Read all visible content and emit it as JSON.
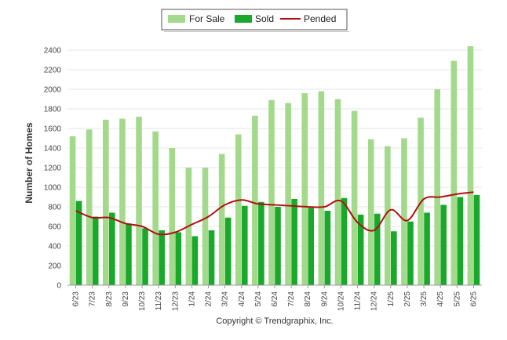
{
  "chart_data": {
    "type": "bar",
    "categories": [
      "6/23",
      "7/23",
      "8/23",
      "9/23",
      "10/23",
      "11/23",
      "12/23",
      "1/24",
      "2/24",
      "3/24",
      "4/24",
      "5/24",
      "6/24",
      "7/24",
      "8/24",
      "9/24",
      "10/24",
      "11/24",
      "12/24",
      "1/25",
      "2/25",
      "3/25",
      "4/25",
      "5/25",
      "6/25"
    ],
    "series": [
      {
        "name": "For Sale",
        "type": "bar",
        "color": "#a3d98a",
        "values": [
          1520,
          1590,
          1690,
          1700,
          1720,
          1570,
          1400,
          1200,
          1200,
          1340,
          1540,
          1730,
          1890,
          1860,
          1960,
          1980,
          1900,
          1780,
          1490,
          1420,
          1500,
          1710,
          2000,
          2290,
          2440
        ]
      },
      {
        "name": "Sold",
        "type": "bar",
        "color": "#18a82a",
        "values": [
          860,
          700,
          740,
          630,
          580,
          560,
          540,
          500,
          560,
          690,
          810,
          850,
          800,
          880,
          790,
          760,
          890,
          720,
          730,
          550,
          650,
          740,
          820,
          900,
          920
        ]
      },
      {
        "name": "Pended",
        "type": "line",
        "color": "#b01010",
        "values": [
          760,
          690,
          690,
          630,
          600,
          520,
          540,
          620,
          700,
          820,
          870,
          830,
          820,
          810,
          800,
          800,
          860,
          640,
          560,
          770,
          660,
          880,
          900,
          930,
          950
        ]
      }
    ],
    "ylabel": "Number of Homes",
    "xlabel": "",
    "ylim": [
      0,
      2400
    ],
    "yticks": [
      "0",
      "200",
      "400",
      "600",
      "800",
      "1000",
      "1200",
      "1400",
      "1600",
      "1800",
      "2000",
      "2200",
      "2400"
    ],
    "grid": true,
    "legend": "top-center"
  },
  "footer": {
    "copyright": "Copyright © Trendgraphix, Inc."
  }
}
